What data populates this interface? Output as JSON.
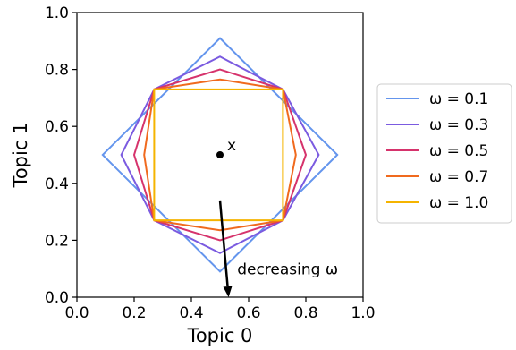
{
  "chart_data": {
    "type": "line",
    "xlabel": "Topic 0",
    "ylabel": "Topic 1",
    "xlim": [
      0.0,
      1.0
    ],
    "ylim": [
      0.0,
      1.0
    ],
    "xticks": [
      "0.0",
      "0.2",
      "0.4",
      "0.6",
      "0.8",
      "1.0"
    ],
    "yticks": [
      "0.0",
      "0.2",
      "0.4",
      "0.6",
      "0.8",
      "1.0"
    ],
    "grid": false,
    "legend_position": "right",
    "series": [
      {
        "name": "ω = 0.1",
        "color": "#6495ED",
        "points": [
          [
            0.5,
            0.91
          ],
          [
            0.91,
            0.5
          ],
          [
            0.5,
            0.09
          ],
          [
            0.09,
            0.5
          ]
        ]
      },
      {
        "name": "ω = 0.3",
        "color": "#7B5BE0",
        "points": [
          [
            0.5,
            0.845
          ],
          [
            0.72,
            0.73
          ],
          [
            0.845,
            0.5
          ],
          [
            0.72,
            0.27
          ],
          [
            0.5,
            0.155
          ],
          [
            0.27,
            0.27
          ],
          [
            0.155,
            0.5
          ],
          [
            0.27,
            0.73
          ]
        ]
      },
      {
        "name": "ω = 0.5",
        "color": "#D6336C",
        "points": [
          [
            0.5,
            0.8
          ],
          [
            0.72,
            0.73
          ],
          [
            0.8,
            0.5
          ],
          [
            0.72,
            0.27
          ],
          [
            0.5,
            0.2
          ],
          [
            0.27,
            0.27
          ],
          [
            0.2,
            0.5
          ],
          [
            0.27,
            0.73
          ]
        ]
      },
      {
        "name": "ω = 0.7",
        "color": "#F06A1E",
        "points": [
          [
            0.5,
            0.765
          ],
          [
            0.72,
            0.73
          ],
          [
            0.765,
            0.5
          ],
          [
            0.72,
            0.27
          ],
          [
            0.5,
            0.235
          ],
          [
            0.27,
            0.27
          ],
          [
            0.235,
            0.5
          ],
          [
            0.27,
            0.73
          ]
        ]
      },
      {
        "name": "ω = 1.0",
        "color": "#F5B400",
        "points": [
          [
            0.27,
            0.73
          ],
          [
            0.72,
            0.73
          ],
          [
            0.72,
            0.27
          ],
          [
            0.27,
            0.27
          ]
        ]
      }
    ],
    "point": {
      "label": "x",
      "x": 0.5,
      "y": 0.5
    },
    "arrow": {
      "label": "decreasing ω",
      "from": [
        0.5,
        0.34
      ],
      "to": [
        0.53,
        0.0
      ]
    }
  }
}
